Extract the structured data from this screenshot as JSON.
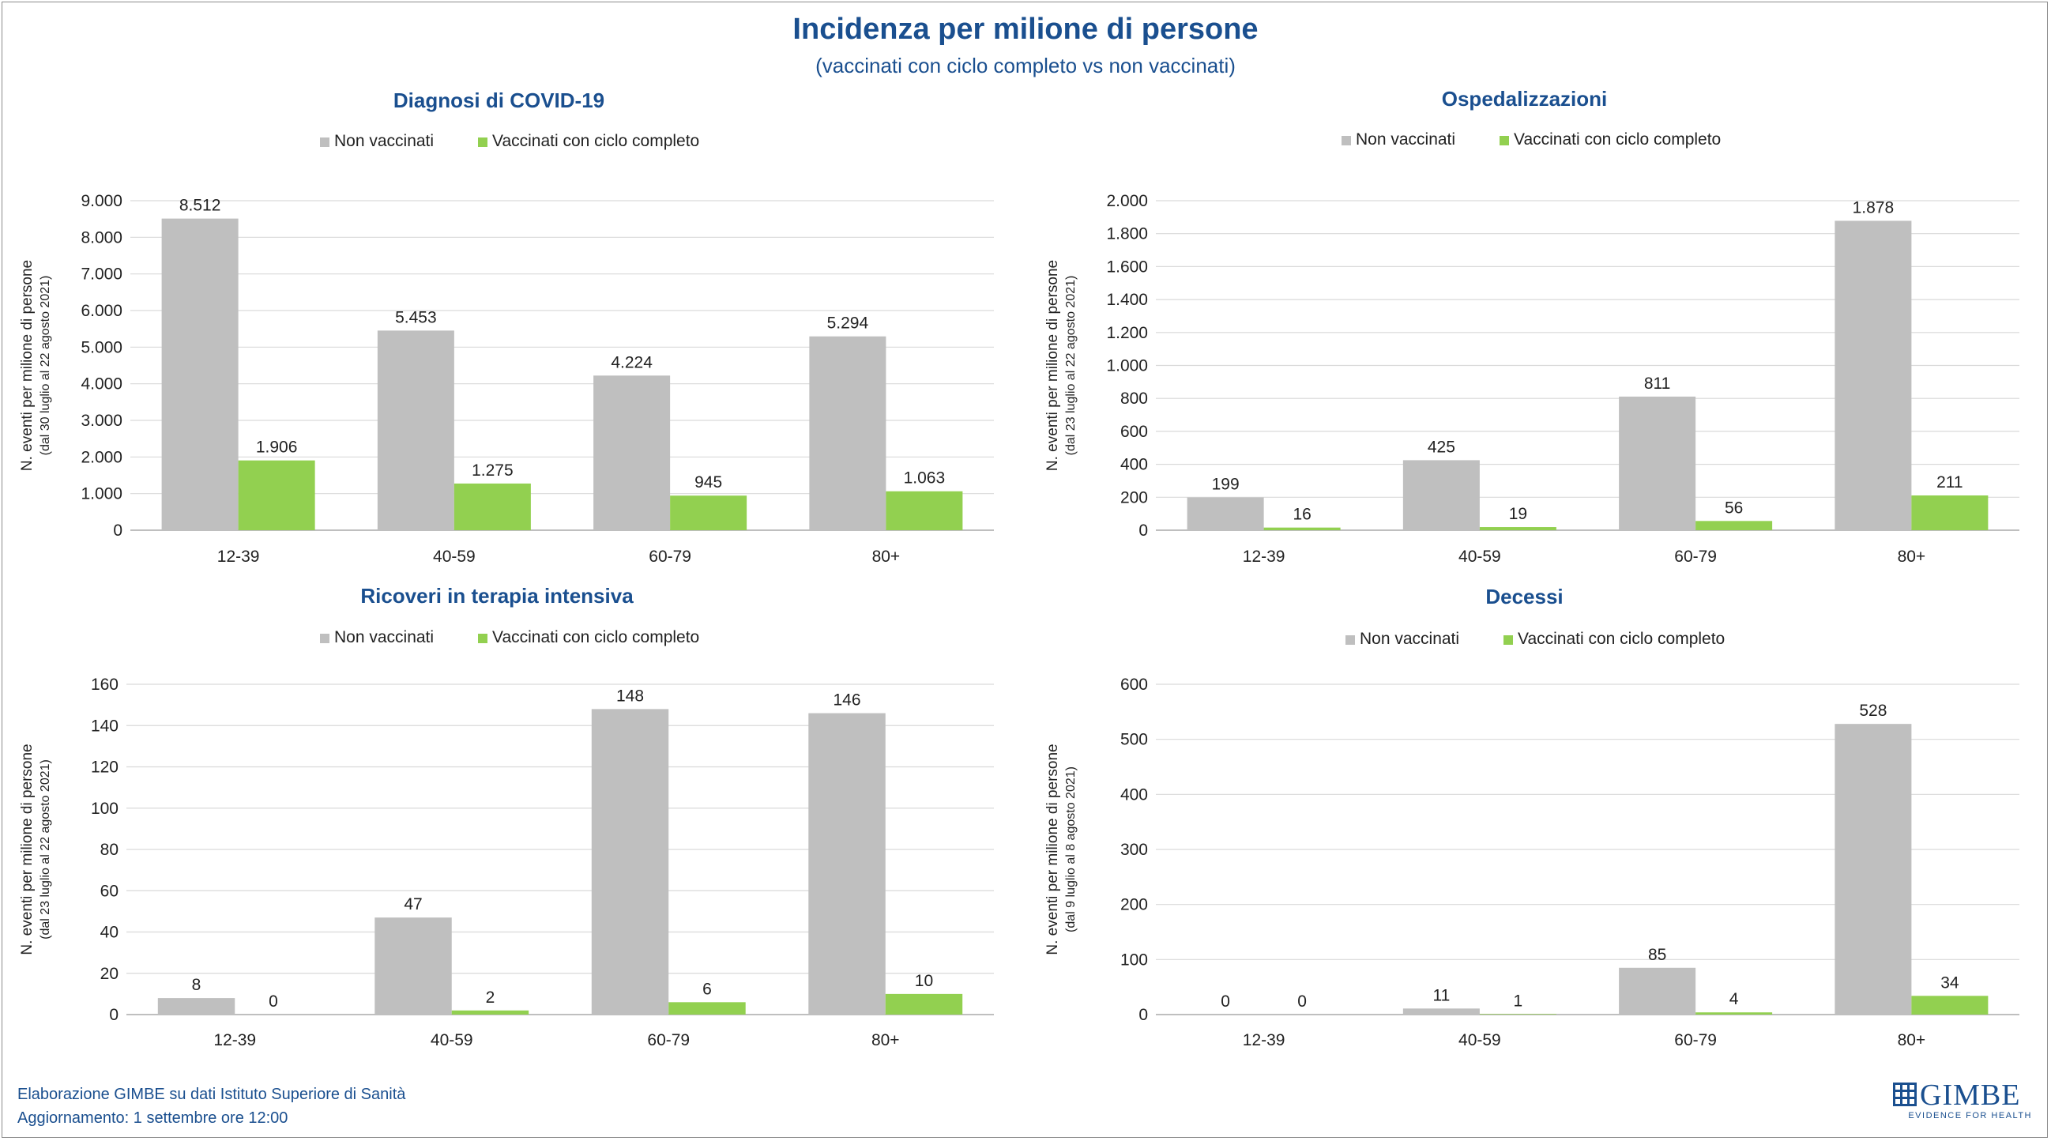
{
  "header": {
    "title": "Incidenza per milione di persone",
    "subtitle": "(vaccinati con ciclo completo vs non vaccinati)"
  },
  "legend_labels": [
    "Non vaccinati",
    "Vaccinati con ciclo completo"
  ],
  "colors": {
    "unvaccinated": "#bfbfbf",
    "vaccinated": "#92d050",
    "title": "#1a4f8f",
    "grid": "#d9d9d9"
  },
  "footer": {
    "source": "Elaborazione GIMBE su dati Istituto Superiore di Sanità",
    "updated": "Aggiornamento: 1 settembre ore 12:00",
    "logo_text": "GIMBE",
    "logo_tagline": "EVIDENCE FOR HEALTH"
  },
  "chart_data": [
    {
      "type": "bar",
      "title": "Diagnosi di COVID-19",
      "ylabel": "N. eventi per milione di persone",
      "ylabel2": "(dal 30 luglio al 22 agosto 2021)",
      "categories": [
        "12-39",
        "40-59",
        "60-79",
        "80+"
      ],
      "series": [
        {
          "name": "Non vaccinati",
          "values": [
            8512,
            5453,
            4224,
            5294
          ],
          "labels": [
            "8.512",
            "5.453",
            "4.224",
            "5.294"
          ]
        },
        {
          "name": "Vaccinati con ciclo completo",
          "values": [
            1906,
            1275,
            945,
            1063
          ],
          "labels": [
            "1.906",
            "1.275",
            "945",
            "1.063"
          ]
        }
      ],
      "ylim": [
        0,
        9000
      ],
      "yticks": [
        0,
        1000,
        2000,
        3000,
        4000,
        5000,
        6000,
        7000,
        8000,
        9000
      ],
      "ytick_labels": [
        "0",
        "1.000",
        "2.000",
        "3.000",
        "4.000",
        "5.000",
        "6.000",
        "7.000",
        "8.000",
        "9.000"
      ],
      "grid": true,
      "legend": "top"
    },
    {
      "type": "bar",
      "title": "Ospedalizzazioni",
      "ylabel": "N. eventi per milione di persone",
      "ylabel2": "(dal 23 luglio al 22 agosto 2021)",
      "categories": [
        "12-39",
        "40-59",
        "60-79",
        "80+"
      ],
      "series": [
        {
          "name": "Non vaccinati",
          "values": [
            199,
            425,
            811,
            1878
          ],
          "labels": [
            "199",
            "425",
            "811",
            "1.878"
          ]
        },
        {
          "name": "Vaccinati con ciclo completo",
          "values": [
            16,
            19,
            56,
            211
          ],
          "labels": [
            "16",
            "19",
            "56",
            "211"
          ]
        }
      ],
      "ylim": [
        0,
        2000
      ],
      "yticks": [
        0,
        200,
        400,
        600,
        800,
        1000,
        1200,
        1400,
        1600,
        1800,
        2000
      ],
      "ytick_labels": [
        "0",
        "200",
        "400",
        "600",
        "800",
        "1.000",
        "1.200",
        "1.400",
        "1.600",
        "1.800",
        "2.000"
      ],
      "grid": true,
      "legend": "top"
    },
    {
      "type": "bar",
      "title": "Ricoveri in terapia intensiva",
      "ylabel": "N. eventi per milione di persone",
      "ylabel2": "(dal 23 luglio al 22 agosto 2021)",
      "categories": [
        "12-39",
        "40-59",
        "60-79",
        "80+"
      ],
      "series": [
        {
          "name": "Non vaccinati",
          "values": [
            8,
            47,
            148,
            146
          ],
          "labels": [
            "8",
            "47",
            "148",
            "146"
          ]
        },
        {
          "name": "Vaccinati con ciclo completo",
          "values": [
            0,
            2,
            6,
            10
          ],
          "labels": [
            "0",
            "2",
            "6",
            "10"
          ]
        }
      ],
      "ylim": [
        0,
        160
      ],
      "yticks": [
        0,
        20,
        40,
        60,
        80,
        100,
        120,
        140,
        160
      ],
      "ytick_labels": [
        "0",
        "20",
        "40",
        "60",
        "80",
        "100",
        "120",
        "140",
        "160"
      ],
      "grid": true,
      "legend": "top"
    },
    {
      "type": "bar",
      "title": "Decessi",
      "ylabel": "N. eventi per milione di persone",
      "ylabel2": "(dal 9 luglio al 8 agosto 2021)",
      "categories": [
        "12-39",
        "40-59",
        "60-79",
        "80+"
      ],
      "series": [
        {
          "name": "Non vaccinati",
          "values": [
            0,
            11,
            85,
            528
          ],
          "labels": [
            "0",
            "11",
            "85",
            "528"
          ]
        },
        {
          "name": "Vaccinati con ciclo completo",
          "values": [
            0,
            1,
            4,
            34
          ],
          "labels": [
            "0",
            "1",
            "4",
            "34"
          ]
        }
      ],
      "ylim": [
        0,
        600
      ],
      "yticks": [
        0,
        100,
        200,
        300,
        400,
        500,
        600
      ],
      "ytick_labels": [
        "0",
        "100",
        "200",
        "300",
        "400",
        "500",
        "600"
      ],
      "grid": true,
      "legend": "top"
    }
  ]
}
